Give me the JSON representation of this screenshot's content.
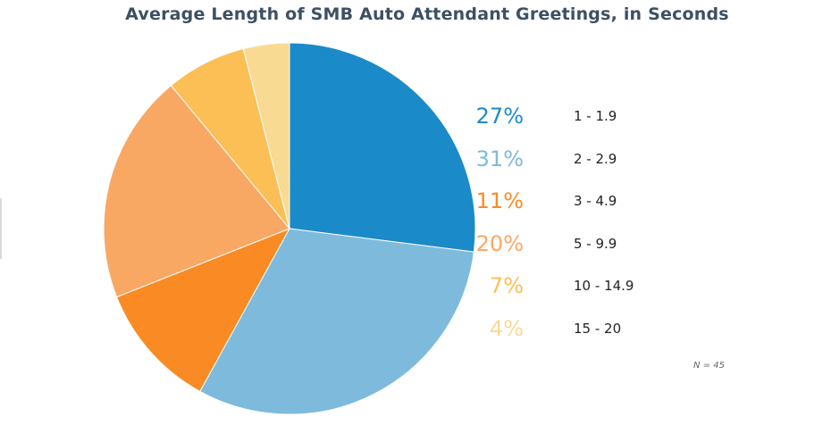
{
  "chart_data": {
    "type": "pie",
    "title": "Average Length of SMB Auto Attendant Greetings, in Seconds",
    "note": "N = 45",
    "slices": [
      {
        "label": "1 - 1.9",
        "value": 27,
        "display": "27%",
        "color": "#1b8ac9"
      },
      {
        "label": "2 - 2.9",
        "value": 31,
        "display": "31%",
        "color": "#7ebadb"
      },
      {
        "label": "3 - 4.9",
        "value": 11,
        "display": "11%",
        "color": "#fa8a23"
      },
      {
        "label": "5 - 9.9",
        "value": 20,
        "display": "20%",
        "color": "#f9a864"
      },
      {
        "label": "10 - 14.9",
        "value": 7,
        "display": "7%",
        "color": "#fbbf55"
      },
      {
        "label": "15 - 20",
        "value": 4,
        "display": "4%",
        "color": "#f8da93"
      }
    ],
    "legend_position": "right"
  }
}
